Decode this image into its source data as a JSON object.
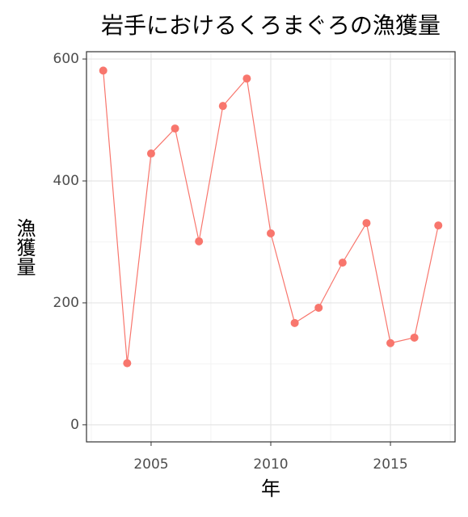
{
  "chart_data": {
    "type": "line",
    "title": "岩手におけるくろまぐろの漁獲量",
    "x_label": "年",
    "y_label": "漁獲量",
    "x": [
      2003,
      2004,
      2005,
      2006,
      2007,
      2008,
      2009,
      2010,
      2011,
      2012,
      2013,
      2014,
      2015,
      2016,
      2017
    ],
    "series": [
      {
        "name": "漁獲量",
        "color": "#F8766D",
        "values": [
          581,
          101,
          445,
          486,
          301,
          523,
          568,
          314,
          167,
          192,
          266,
          331,
          134,
          143,
          327
        ]
      }
    ],
    "xlim": [
      2002.3,
      2017.7
    ],
    "xticks": [
      2005,
      2010,
      2015
    ],
    "ylim": [
      -28,
      612
    ],
    "yticks": [
      0,
      200,
      400,
      600
    ],
    "x_minor_grid": [
      2002.5,
      2007.5,
      2012.5,
      2017.5
    ],
    "y_minor_grid": [
      100,
      300,
      500
    ],
    "grid": true,
    "legend": false
  }
}
